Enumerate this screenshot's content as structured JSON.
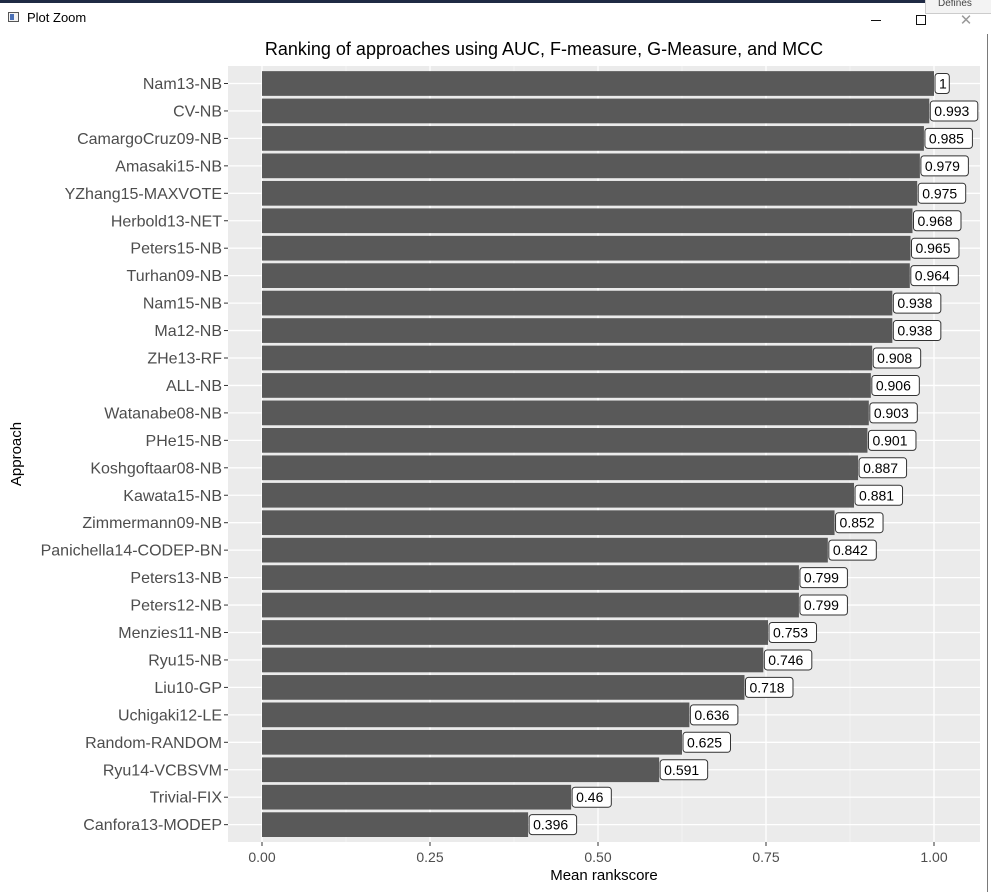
{
  "window": {
    "title": "Plot Zoom",
    "partial_tab_label": "Defines"
  },
  "colors": {
    "bar": "#595959",
    "panel": "#ebebeb",
    "grid_major": "#ffffff",
    "grid_minor": "#f5f5f5",
    "label_text": "#4d4d4d"
  },
  "chart_data": {
    "type": "bar",
    "orientation": "horizontal",
    "title": "Ranking of approaches using AUC, F-measure, G-Measure, and MCC",
    "xlabel": "Mean rankscore",
    "ylabel": "Approach",
    "xlim": [
      0,
      1
    ],
    "x_ticks": [
      0,
      0.25,
      0.5,
      0.75,
      1
    ],
    "x_tick_labels": [
      "0.00",
      "0.25",
      "0.50",
      "0.75",
      "1.00"
    ],
    "grid": true,
    "legend": "none",
    "categories": [
      "Nam13-NB",
      "CV-NB",
      "CamargoCruz09-NB",
      "Amasaki15-NB",
      "YZhang15-MAXVOTE",
      "Herbold13-NET",
      "Peters15-NB",
      "Turhan09-NB",
      "Nam15-NB",
      "Ma12-NB",
      "ZHe13-RF",
      "ALL-NB",
      "Watanabe08-NB",
      "PHe15-NB",
      "Koshgoftaar08-NB",
      "Kawata15-NB",
      "Zimmermann09-NB",
      "Panichella14-CODEP-BN",
      "Peters13-NB",
      "Peters12-NB",
      "Menzies11-NB",
      "Ryu15-NB",
      "Liu10-GP",
      "Uchigaki12-LE",
      "Random-RANDOM",
      "Ryu14-VCBSVM",
      "Trivial-FIX",
      "Canfora13-MODEP"
    ],
    "values": [
      1,
      0.993,
      0.985,
      0.979,
      0.975,
      0.968,
      0.965,
      0.964,
      0.938,
      0.938,
      0.908,
      0.906,
      0.903,
      0.901,
      0.887,
      0.881,
      0.852,
      0.842,
      0.799,
      0.799,
      0.753,
      0.746,
      0.718,
      0.636,
      0.625,
      0.591,
      0.46,
      0.396
    ],
    "data_labels": [
      "1",
      "0.993",
      "0.985",
      "0.979",
      "0.975",
      "0.968",
      "0.965",
      "0.964",
      "0.938",
      "0.938",
      "0.908",
      "0.906",
      "0.903",
      "0.901",
      "0.887",
      "0.881",
      "0.852",
      "0.842",
      "0.799",
      "0.799",
      "0.753",
      "0.746",
      "0.718",
      "0.636",
      "0.625",
      "0.591",
      "0.46",
      "0.396"
    ]
  }
}
